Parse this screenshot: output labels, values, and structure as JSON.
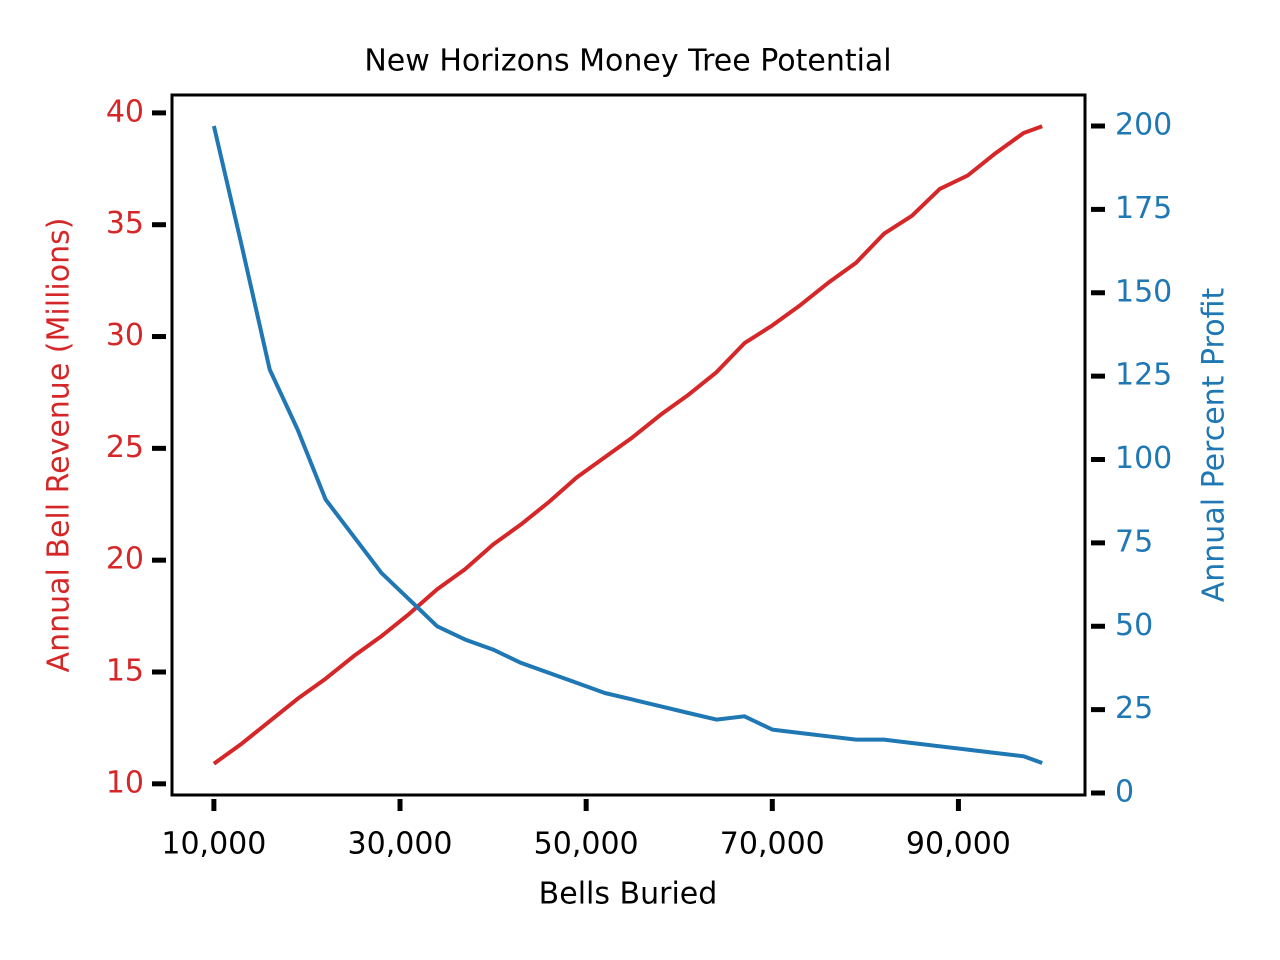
{
  "chart_data": {
    "type": "line",
    "title": "New Horizons Money Tree Potential",
    "xlabel": "Bells Buried",
    "ylabel": "Annual Bell Revenue (Millions)",
    "y2label": "Annual Percent Profit",
    "x": [
      10000,
      13000,
      16000,
      19000,
      22000,
      25000,
      28000,
      31000,
      34000,
      37000,
      40000,
      43000,
      46000,
      49000,
      52000,
      55000,
      58000,
      61000,
      64000,
      67000,
      70000,
      73000,
      76000,
      79000,
      82000,
      85000,
      88000,
      91000,
      94000,
      97000,
      99000
    ],
    "series": [
      {
        "name": "Annual Bell Revenue (Millions)",
        "color": "#d62728",
        "axis": "y",
        "values": [
          10.9,
          11.8,
          12.8,
          13.8,
          14.7,
          15.7,
          16.6,
          17.6,
          18.7,
          19.6,
          20.7,
          21.6,
          22.6,
          23.7,
          24.6,
          25.5,
          26.5,
          27.4,
          28.4,
          29.7,
          30.5,
          31.4,
          32.4,
          33.3,
          34.6,
          35.4,
          36.6,
          37.2,
          38.2,
          39.1,
          39.4
        ]
      },
      {
        "name": "Annual Percent Profit",
        "color": "#1f77b4",
        "axis": "y2",
        "values": [
          200,
          164,
          127,
          109,
          88,
          77,
          66,
          58,
          50,
          46,
          43,
          39,
          36,
          33,
          30,
          28,
          26,
          24,
          22,
          23,
          19,
          18,
          17,
          16,
          16,
          15,
          14,
          13,
          12,
          11,
          9
        ]
      }
    ],
    "xlim": [
      5500,
      103600
    ],
    "xticks": [
      {
        "value": 10000,
        "label": "10,000"
      },
      {
        "value": 30000,
        "label": "30,000"
      },
      {
        "value": 50000,
        "label": "50,000"
      },
      {
        "value": 70000,
        "label": "70,000"
      },
      {
        "value": 90000,
        "label": "90,000"
      }
    ],
    "ylim": [
      9.5,
      40.8
    ],
    "yticks": [
      10,
      15,
      20,
      25,
      30,
      35,
      40
    ],
    "y2lim": [
      -0.6,
      209.3
    ],
    "y2ticks": [
      0,
      25,
      50,
      75,
      100,
      125,
      150,
      175,
      200
    ],
    "grid": false
  }
}
